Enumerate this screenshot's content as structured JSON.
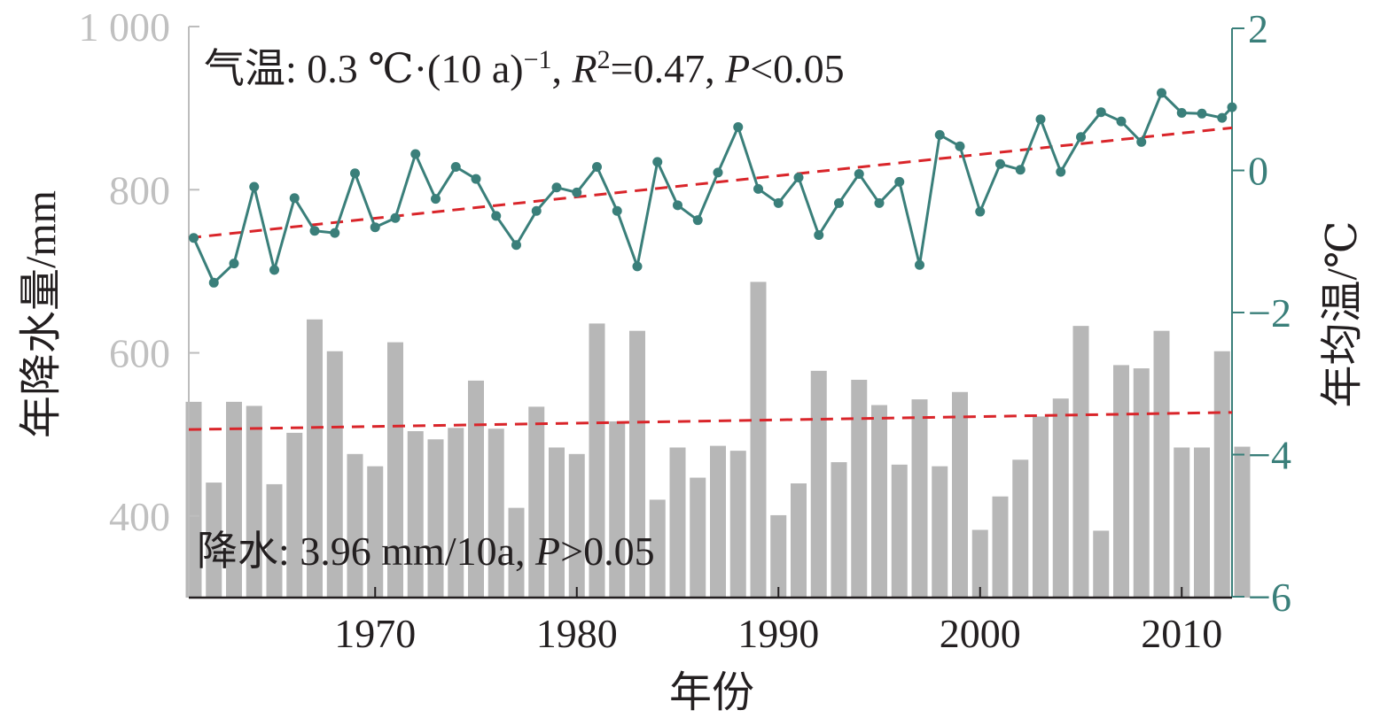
{
  "chart_data": {
    "type": "bar+line",
    "xlabel": "年份",
    "x_ticks": [
      1970,
      1980,
      1990,
      2000,
      2010
    ],
    "x_range": [
      1961,
      2013
    ],
    "left_axis": {
      "label": "年降水量/mm",
      "ticks": [
        400,
        600,
        800,
        "1 000"
      ],
      "tick_values": [
        400,
        600,
        800,
        1000
      ],
      "range": [
        300,
        1000
      ],
      "color": "#c0c0c0"
    },
    "right_axis": {
      "label": "年均温/℃",
      "ticks": [
        2,
        0,
        -2,
        -4,
        -6
      ],
      "tick_values": [
        2,
        0,
        -2,
        -4,
        -6
      ],
      "range": [
        -6,
        2
      ],
      "color": "#3a7f7a"
    },
    "precip_series": {
      "years": [
        1961,
        1962,
        1963,
        1964,
        1965,
        1966,
        1967,
        1968,
        1969,
        1970,
        1971,
        1972,
        1973,
        1974,
        1975,
        1976,
        1977,
        1978,
        1979,
        1980,
        1981,
        1982,
        1983,
        1984,
        1985,
        1986,
        1987,
        1988,
        1989,
        1990,
        1991,
        1992,
        1993,
        1994,
        1995,
        1996,
        1997,
        1998,
        1999,
        2000,
        2001,
        2002,
        2003,
        2004,
        2005,
        2006,
        2007,
        2008,
        2009,
        2010,
        2011,
        2012,
        2013
      ],
      "values": [
        540,
        441,
        540,
        535,
        439,
        502,
        641,
        602,
        476,
        461,
        613,
        504,
        494,
        508,
        566,
        507,
        410,
        534,
        484,
        476,
        636,
        516,
        627,
        420,
        484,
        447,
        486,
        480,
        687,
        401,
        440,
        578,
        466,
        567,
        536,
        463,
        543,
        461,
        552,
        383,
        424,
        469,
        522,
        544,
        633,
        382,
        585,
        581,
        627,
        484,
        484,
        602,
        485
      ],
      "color": "#b7b7b7",
      "trend": {
        "start": 506,
        "end": 527,
        "color": "#d9252a"
      }
    },
    "temp_series": {
      "years": [
        1961,
        1962,
        1963,
        1964,
        1965,
        1966,
        1967,
        1968,
        1969,
        1970,
        1971,
        1972,
        1973,
        1974,
        1975,
        1976,
        1977,
        1978,
        1979,
        1980,
        1981,
        1982,
        1983,
        1984,
        1985,
        1986,
        1987,
        1988,
        1989,
        1990,
        1991,
        1992,
        1993,
        1994,
        1995,
        1996,
        1997,
        1998,
        1999,
        2000,
        2001,
        2002,
        2003,
        2004,
        2005,
        2006,
        2007,
        2008,
        2009,
        2010,
        2011,
        2012,
        2013
      ],
      "values": [
        -0.95,
        -1.58,
        -1.31,
        -0.23,
        -1.4,
        -0.39,
        -0.85,
        -0.88,
        -0.04,
        -0.8,
        -0.67,
        0.23,
        -0.4,
        0.05,
        -0.12,
        -0.64,
        -1.05,
        -0.57,
        -0.24,
        -0.31,
        0.05,
        -0.57,
        -1.35,
        0.12,
        -0.49,
        -0.7,
        -0.03,
        0.61,
        -0.26,
        -0.46,
        -0.1,
        -0.91,
        -0.46,
        -0.05,
        -0.46,
        -0.16,
        -1.33,
        0.5,
        0.34,
        -0.58,
        0.09,
        0.01,
        0.72,
        -0.02,
        0.47,
        0.82,
        0.69,
        0.4,
        1.09,
        0.81,
        0.8,
        0.74,
        0.89
      ],
      "color": "#3a7f7a",
      "trend": {
        "start": -0.95,
        "end": 0.6,
        "color": "#d9252a"
      }
    },
    "annotation_temp": {
      "prefix": "气温: 0.3 ℃·(10 a)",
      "exp": "−1",
      "r": "R",
      "r_exp": "2",
      "r_val": "=0.47, ",
      "p": "P",
      "p_val": "<0.05"
    },
    "annotation_precip": {
      "prefix": "降水: 3.96 mm/10a, ",
      "p": "P",
      "p_val": ">0.05"
    }
  }
}
